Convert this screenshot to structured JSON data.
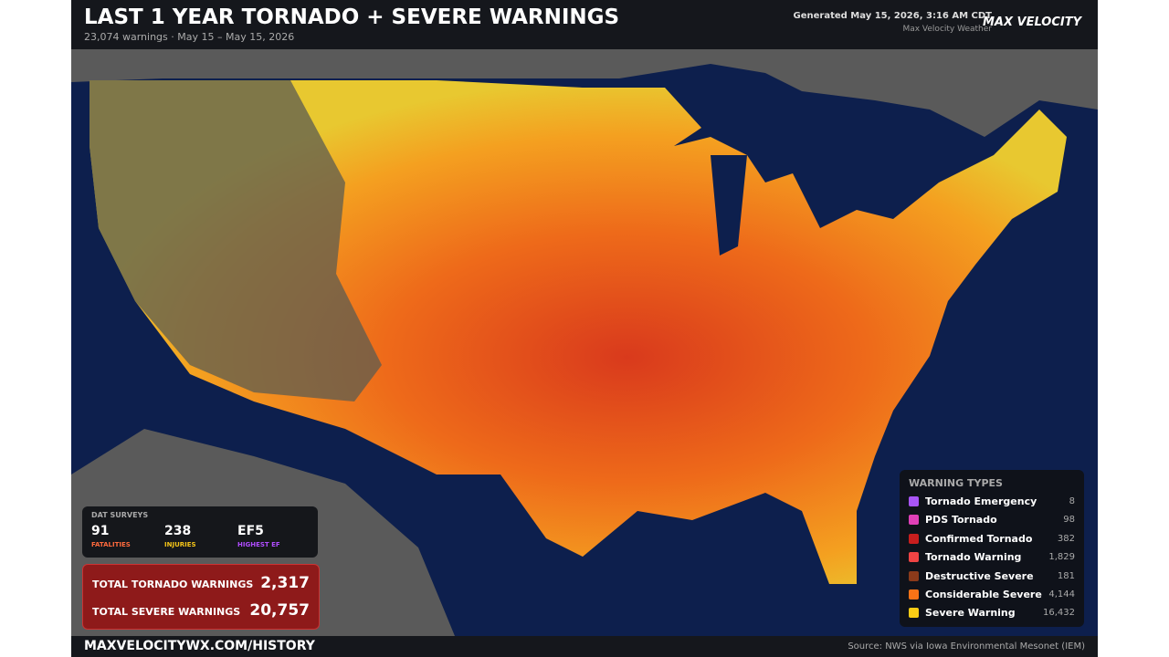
{
  "header": {
    "title": "LAST 1 YEAR TORNADO + SEVERE WARNINGS",
    "subtitle": "23,074 warnings · May 15 – May 15, 2026",
    "generated": "Generated May 15, 2026, 3:16 AM CDT",
    "credit": "Max Velocity Weather",
    "logo": "MAX VELOCITY"
  },
  "dat_surveys": {
    "title": "DAT SURVEYS",
    "stats": [
      {
        "value": "91",
        "label": "FATALITIES",
        "color": "#ff6a3d"
      },
      {
        "value": "238",
        "label": "INJURIES",
        "color": "#f5c518"
      },
      {
        "value": "EF5",
        "label": "HIGHEST EF",
        "color": "#b04dff"
      }
    ]
  },
  "totals": [
    {
      "label": "TOTAL TORNADO WARNINGS",
      "value": "2,317"
    },
    {
      "label": "TOTAL SEVERE WARNINGS",
      "value": "20,757"
    }
  ],
  "legend": {
    "title": "WARNING TYPES",
    "items": [
      {
        "name": "Tornado Emergency",
        "color": "#a855f7",
        "count": "8"
      },
      {
        "name": "PDS Tornado",
        "color": "#e040b8",
        "count": "98"
      },
      {
        "name": "Confirmed Tornado",
        "color": "#c81e1e",
        "count": "382"
      },
      {
        "name": "Tornado Warning",
        "color": "#ef4444",
        "count": "1,829"
      },
      {
        "name": "Destructive Severe",
        "color": "#8b3a1a",
        "count": "181"
      },
      {
        "name": "Considerable Severe",
        "color": "#f97316",
        "count": "4,144"
      },
      {
        "name": "Severe Warning",
        "color": "#facc15",
        "count": "16,432"
      }
    ]
  },
  "footer": {
    "url": "MAXVELOCITYWX.COM/HISTORY",
    "source": "Source: NWS via Iowa Environmental Mesonet (IEM)"
  }
}
